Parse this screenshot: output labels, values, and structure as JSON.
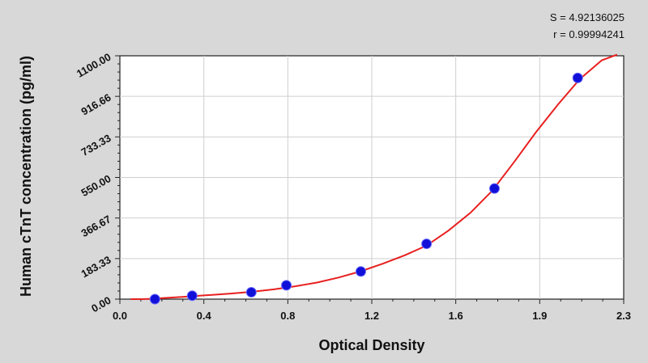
{
  "chart_data": {
    "type": "scatter",
    "xlabel": "Optical Density",
    "ylabel": "Human cTnT concentration (pg/ml)",
    "xlim": [
      0.0,
      2.3
    ],
    "ylim": [
      0.0,
      1100.0
    ],
    "x_ticks": [
      0.0,
      0.4,
      0.8,
      1.2,
      1.6,
      1.9,
      2.3
    ],
    "x_tick_labels": [
      "0.0",
      "0.4",
      "0.8",
      "1.2",
      "1.6",
      "1.9",
      "2.3"
    ],
    "y_ticks": [
      0.0,
      183.33,
      366.67,
      550.0,
      733.33,
      916.66,
      1100.0
    ],
    "y_tick_labels": [
      "0.00",
      "183.33",
      "366.67",
      "550.00",
      "733.33",
      "916.66",
      "1100.00"
    ],
    "grid": true,
    "stats": {
      "s_text": "S = 4.92136025",
      "r_text": "r = 0.99994241"
    },
    "colors": {
      "curve": "#e82020",
      "points": "#1010d8",
      "plot_bg": "#ffffff",
      "page_bg": "#d8d8d8",
      "grid": "#cfcfcf"
    },
    "series": [
      {
        "points": [
          {
            "x": 0.16,
            "y": 0.0
          },
          {
            "x": 0.33,
            "y": 15.6
          },
          {
            "x": 0.6,
            "y": 31.2
          },
          {
            "x": 0.76,
            "y": 62.5
          },
          {
            "x": 1.1,
            "y": 125.0
          },
          {
            "x": 1.4,
            "y": 250.0
          },
          {
            "x": 1.71,
            "y": 500.0
          },
          {
            "x": 2.09,
            "y": 1000.0
          }
        ]
      }
    ],
    "fit_curve": {
      "x": [
        0.05,
        0.1,
        0.15,
        0.2,
        0.3,
        0.4,
        0.5,
        0.6,
        0.7,
        0.8,
        0.9,
        1.0,
        1.1,
        1.2,
        1.3,
        1.4,
        1.5,
        1.6,
        1.7,
        1.8,
        1.9,
        2.0,
        2.1,
        2.2,
        2.27
      ],
      "y": [
        0,
        0,
        2,
        5,
        11,
        18,
        25,
        33,
        44,
        58,
        75,
        98,
        126,
        160,
        198,
        242,
        310,
        390,
        490,
        620,
        755,
        880,
        995,
        1080,
        1105
      ]
    }
  }
}
